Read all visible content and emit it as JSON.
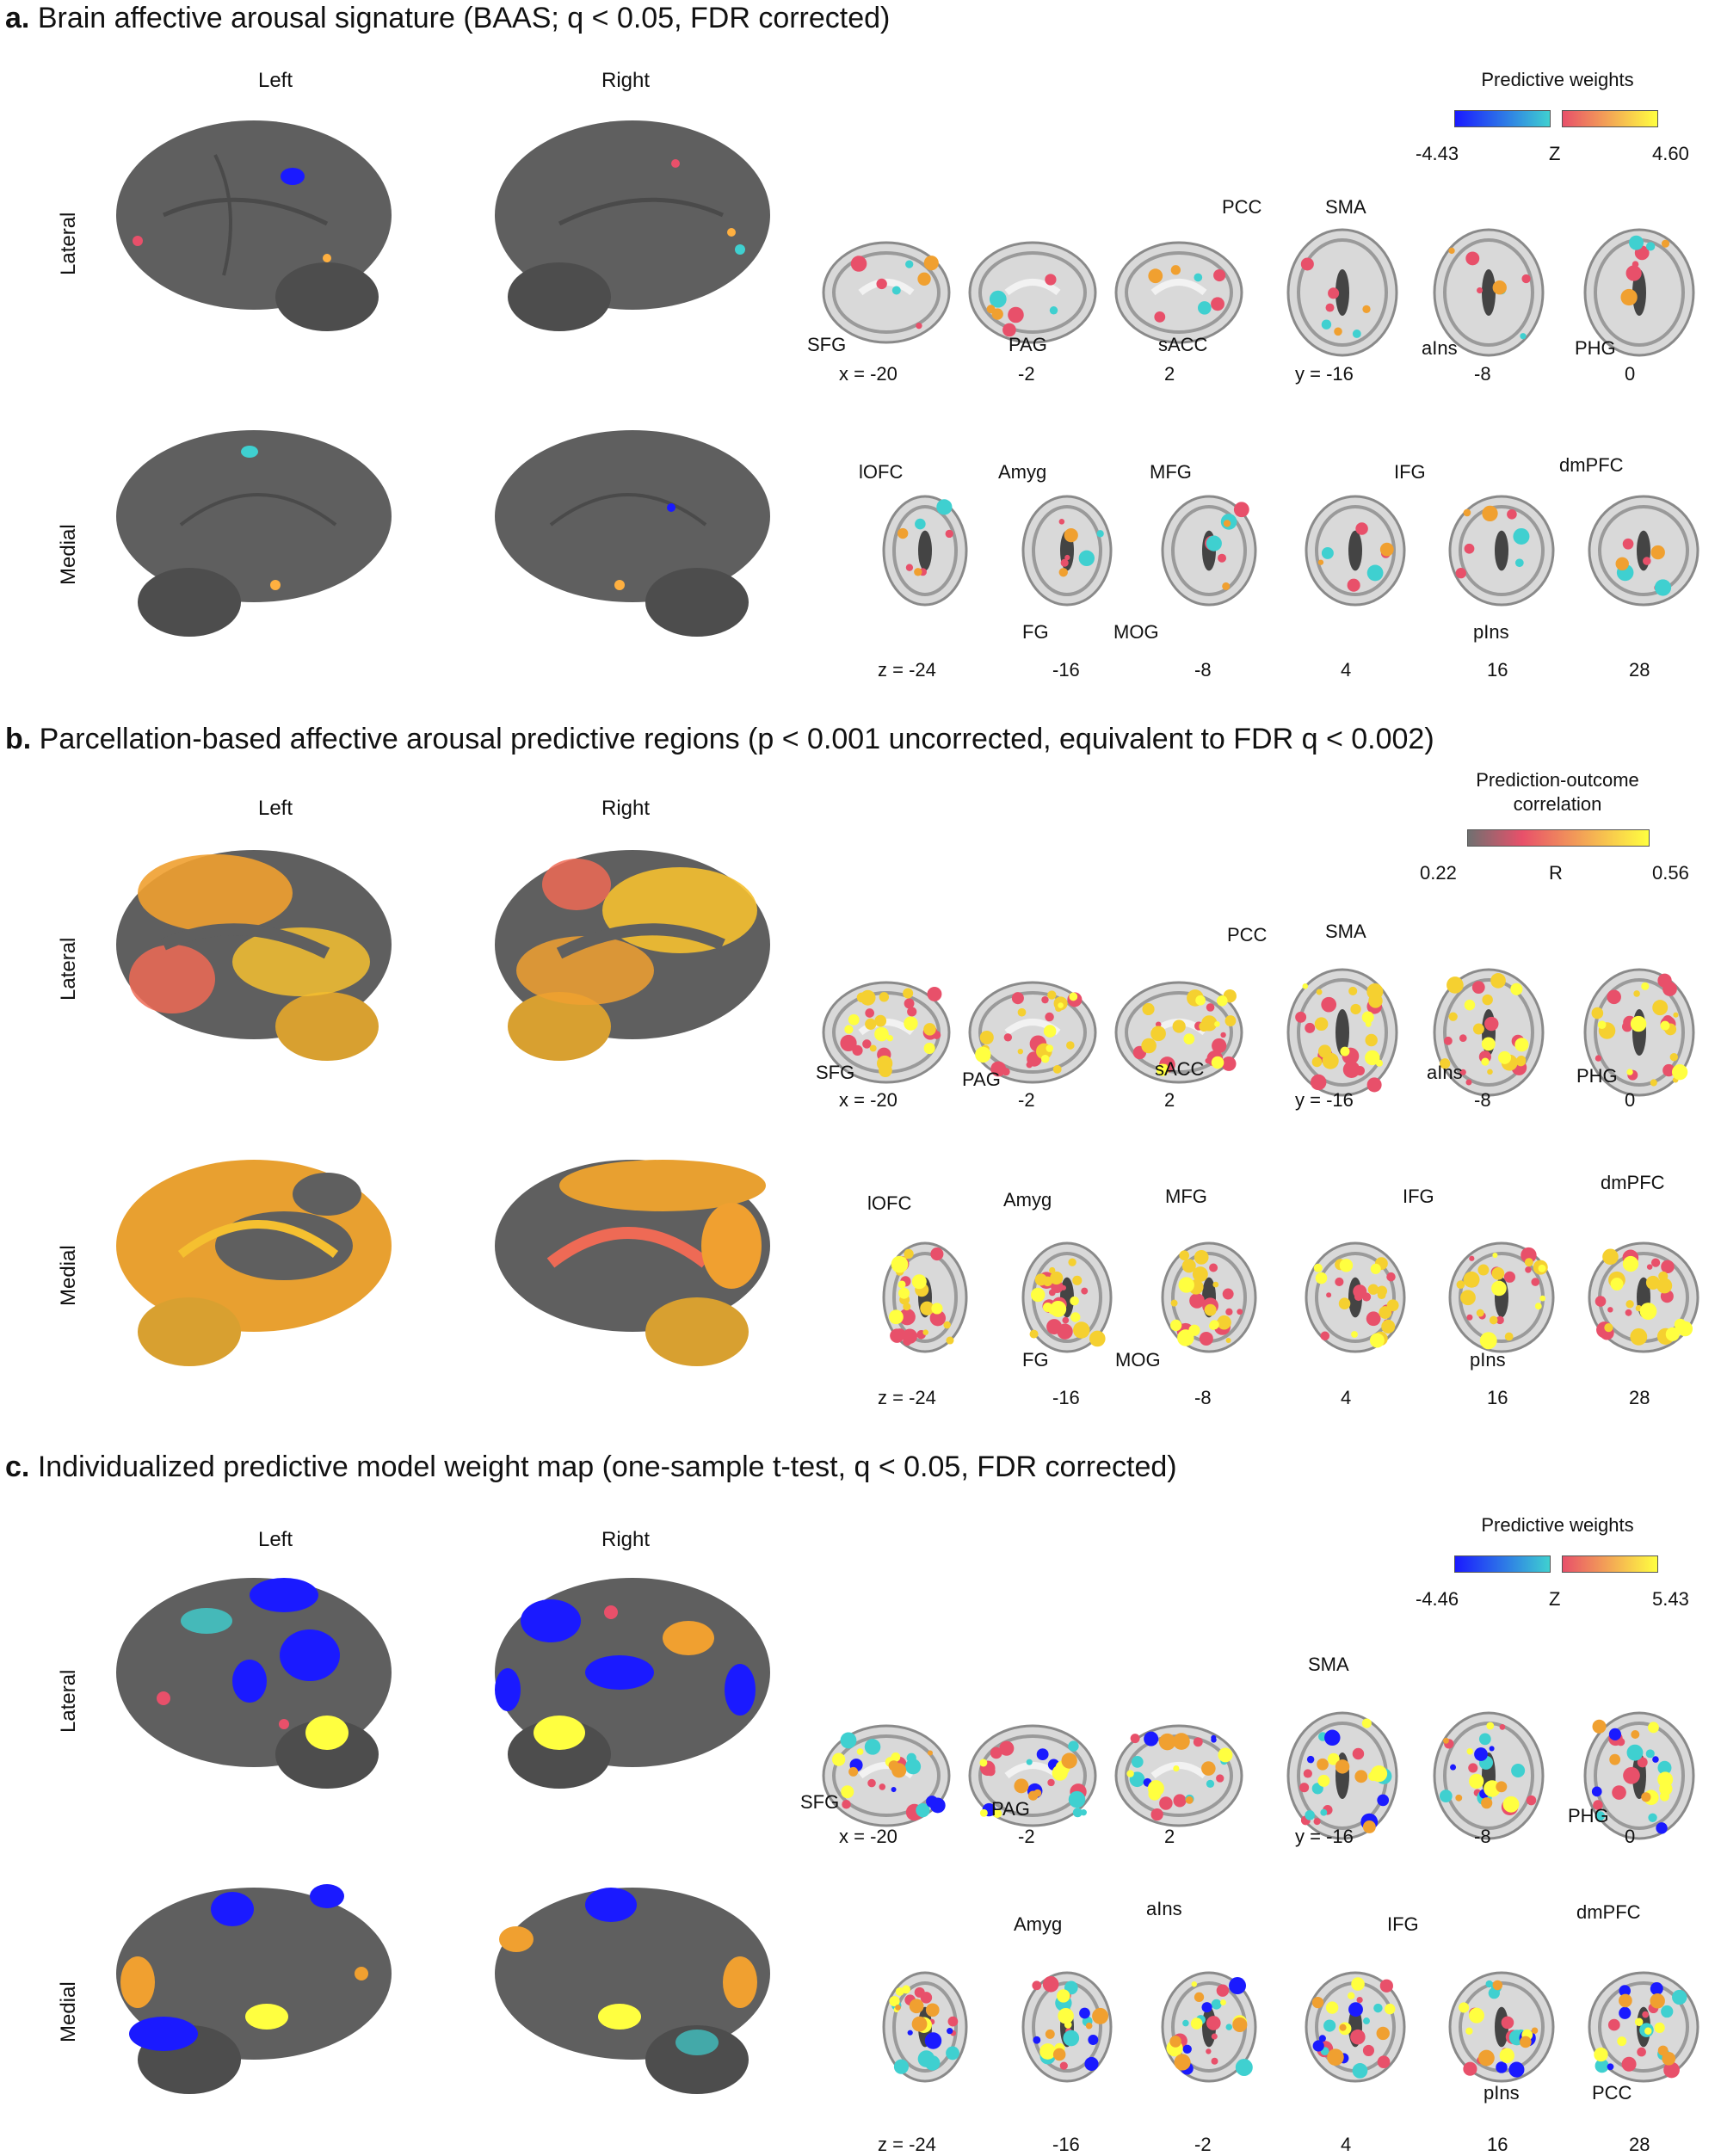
{
  "panels": [
    {
      "key": "a",
      "letter": "a.",
      "title": "Brain affective arousal signature (BAAS; q < 0.05, FDR corrected)",
      "left_label": "Left",
      "right_label": "Right",
      "row_lateral": "Lateral",
      "row_medial": "Medial",
      "colorbar": {
        "title": "Predictive weights",
        "min": "-4.43",
        "mid": "Z",
        "max": "4.60",
        "bipolar": true
      },
      "row1_coords": [
        "x = -20",
        "-2",
        "2",
        "y = -16",
        "-8",
        "0"
      ],
      "row2_coords": [
        "z = -24",
        "-16",
        "-8",
        "4",
        "16",
        "28"
      ],
      "row1_labels": [
        "SFG",
        "PAG",
        "sACC",
        "PCC",
        "SMA",
        "aIns",
        "PHG"
      ],
      "row2_labels": [
        "lOFC",
        "Amyg",
        "MFG",
        "IFG",
        "dmPFC",
        "FG",
        "MOG",
        "pIns"
      ]
    },
    {
      "key": "b",
      "letter": "b.",
      "title": "Parcellation-based affective arousal predictive regions (p < 0.001 uncorrected, equivalent to FDR q < 0.002)",
      "left_label": "Left",
      "right_label": "Right",
      "row_lateral": "Lateral",
      "row_medial": "Medial",
      "colorbar": {
        "title": "Prediction-outcome",
        "title2": "correlation",
        "min": "0.22",
        "mid": "R",
        "max": "0.56",
        "bipolar": false
      },
      "row1_coords": [
        "x = -20",
        "-2",
        "2",
        "y = -16",
        "-8",
        "0"
      ],
      "row2_coords": [
        "z = -24",
        "-16",
        "-8",
        "4",
        "16",
        "28"
      ],
      "row1_labels": [
        "SFG",
        "PAG",
        "sACC",
        "PCC",
        "SMA",
        "aIns",
        "PHG"
      ],
      "row2_labels": [
        "lOFC",
        "Amyg",
        "MFG",
        "IFG",
        "dmPFC",
        "FG",
        "MOG",
        "pIns"
      ]
    },
    {
      "key": "c",
      "letter": "c.",
      "title": "Individualized predictive model weight map (one-sample t-test, q < 0.05, FDR corrected)",
      "left_label": "Left",
      "right_label": "Right",
      "row_lateral": "Lateral",
      "row_medial": "Medial",
      "colorbar": {
        "title": "Predictive weights",
        "min": "-4.46",
        "mid": "Z",
        "max": "5.43",
        "bipolar": true
      },
      "row1_coords": [
        "x = -20",
        "-2",
        "2",
        "y = -16",
        "-8",
        "0"
      ],
      "row2_coords": [
        "z = -24",
        "-16",
        "-2",
        "4",
        "16",
        "28"
      ],
      "row1_labels": [
        "SFG",
        "PAG",
        "SMA",
        "PHG"
      ],
      "row2_labels": [
        "Amyg",
        "aIns",
        "IFG",
        "dmPFC",
        "pIns",
        "PCC"
      ]
    }
  ],
  "colors": {
    "brain_gray": "#5f5f5f",
    "slice_gray": "#c9c9c9",
    "neg_low": "#1a1aff",
    "neg_high": "#3fd0d0",
    "pos_low": "#e8506a",
    "pos_high": "#ffff40"
  }
}
